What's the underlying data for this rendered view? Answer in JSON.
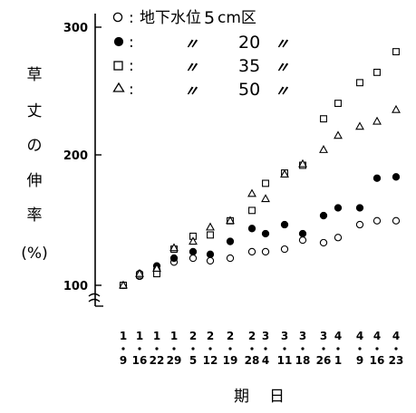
{
  "chart_data": {
    "type": "scatter",
    "title": "",
    "xlabel": "期日",
    "ylabel": [
      "草",
      "丈",
      "の",
      "伸",
      "率",
      "(%)"
    ],
    "y_ticks": [
      "100",
      "200",
      "300"
    ],
    "ylim": [
      100,
      300
    ],
    "y_axis_break": true,
    "grid": false,
    "legend_position": "top",
    "categories": [
      {
        "m": "1",
        "d": "9"
      },
      {
        "m": "1",
        "d": "16"
      },
      {
        "m": "1",
        "d": "22"
      },
      {
        "m": "1",
        "d": "29"
      },
      {
        "m": "2",
        "d": "5"
      },
      {
        "m": "2",
        "d": "12"
      },
      {
        "m": "2",
        "d": "19"
      },
      {
        "m": "2",
        "d": "28"
      },
      {
        "m": "3",
        "d": "4"
      },
      {
        "m": "3",
        "d": "11"
      },
      {
        "m": "3",
        "d": "18"
      },
      {
        "m": "3",
        "d": "26"
      },
      {
        "m": "4",
        "d": "1"
      },
      {
        "m": "4",
        "d": "9"
      },
      {
        "m": "4",
        "d": "16"
      },
      {
        "m": "4",
        "d": "23"
      }
    ],
    "series": [
      {
        "name": "地下水位5cm区",
        "legend_prefix": "地下水位",
        "legend_number": "5",
        "legend_suffix": "cm区",
        "marker": "circle-open",
        "values": [
          100,
          107,
          112,
          118,
          121,
          119,
          121,
          126,
          126,
          128,
          135,
          133,
          137,
          147,
          150,
          150
        ]
      },
      {
        "name": "20",
        "legend_number": "20",
        "marker": "circle-filled",
        "values": [
          100,
          109,
          115,
          121,
          126,
          124,
          134,
          144,
          140,
          147,
          140,
          154,
          160,
          160,
          183,
          184
        ]
      },
      {
        "name": "35",
        "legend_number": "35",
        "marker": "square-open",
        "values": [
          100,
          108,
          109,
          128,
          138,
          139,
          150,
          158,
          179,
          187,
          193,
          229,
          241,
          257,
          265,
          281
        ]
      },
      {
        "name": "50",
        "legend_number": "50",
        "marker": "triangle-open",
        "values": [
          100,
          109,
          113,
          129,
          134,
          145,
          150,
          171,
          167,
          186,
          194,
          205,
          216,
          223,
          227,
          236
        ]
      }
    ]
  },
  "legend": {
    "colon": ":",
    "ditto": "〃"
  }
}
